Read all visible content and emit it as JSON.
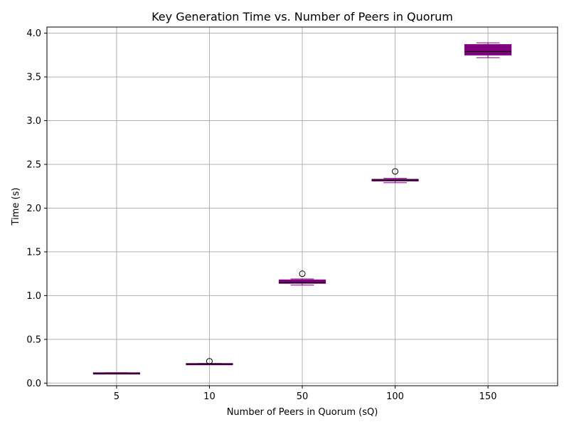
{
  "chart_data": {
    "type": "box",
    "title": "Key Generation Time vs. Number of Peers in Quorum",
    "xlabel": "Number of Peers in Quorum (sQ)",
    "ylabel": "Time (s)",
    "categories": [
      "5",
      "10",
      "50",
      "100",
      "150"
    ],
    "ylim": [
      -0.03,
      4.07
    ],
    "yticks": [
      "0.0",
      "0.5",
      "1.0",
      "1.5",
      "2.0",
      "2.5",
      "3.0",
      "3.5",
      "4.0"
    ],
    "grid": true,
    "box_color": "#800080",
    "median_color": "#000000",
    "boxes": [
      {
        "category": "5",
        "whislo": 0.105,
        "q1": 0.108,
        "median": 0.11,
        "q3": 0.113,
        "whishi": 0.118,
        "fliers": []
      },
      {
        "category": "10",
        "whislo": 0.21,
        "q1": 0.213,
        "median": 0.216,
        "q3": 0.22,
        "whishi": 0.225,
        "fliers": [
          0.25
        ]
      },
      {
        "category": "50",
        "whislo": 1.12,
        "q1": 1.14,
        "median": 1.15,
        "q3": 1.18,
        "whishi": 1.19,
        "fliers": [
          1.25
        ]
      },
      {
        "category": "100",
        "whislo": 2.29,
        "q1": 2.31,
        "median": 2.32,
        "q3": 2.33,
        "whishi": 2.34,
        "fliers": [
          2.42
        ]
      },
      {
        "category": "150",
        "whislo": 3.72,
        "q1": 3.75,
        "median": 3.79,
        "q3": 3.87,
        "whishi": 3.89,
        "fliers": []
      }
    ]
  }
}
